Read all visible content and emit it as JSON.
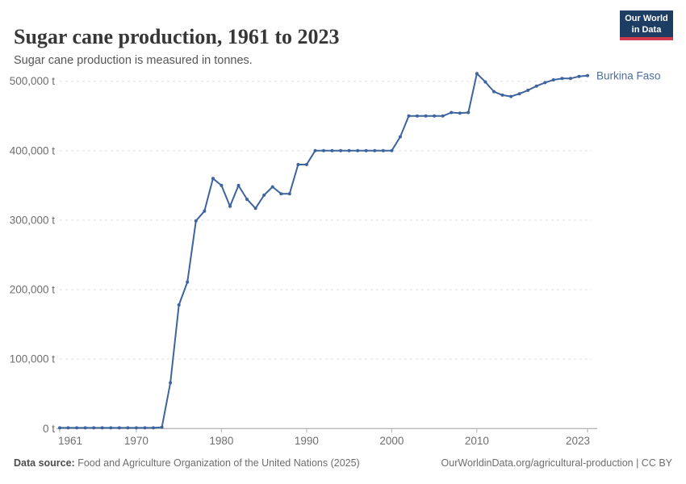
{
  "header": {
    "title": "Sugar cane production, 1961 to 2023",
    "subtitle": "Sugar cane production is measured in tonnes."
  },
  "logo": {
    "line1": "Our World",
    "line2": "in Data",
    "bg_color": "#1d3d63",
    "accent_color": "#d23b4c"
  },
  "chart_data": {
    "type": "line",
    "title": "Sugar cane production, 1961 to 2023",
    "unit": "tonnes",
    "xlabel": "",
    "ylabel": "",
    "xlim": [
      1961,
      2023
    ],
    "ylim": [
      0,
      500000
    ],
    "grid": "horizontal dashed",
    "legend_position": "end-of-line label",
    "x": [
      1961,
      1962,
      1963,
      1964,
      1965,
      1966,
      1967,
      1968,
      1969,
      1970,
      1971,
      1972,
      1973,
      1974,
      1975,
      1976,
      1977,
      1978,
      1979,
      1980,
      1981,
      1982,
      1983,
      1984,
      1985,
      1986,
      1987,
      1988,
      1989,
      1990,
      1991,
      1992,
      1993,
      1994,
      1995,
      1996,
      1997,
      1998,
      1999,
      2000,
      2001,
      2002,
      2003,
      2004,
      2005,
      2006,
      2007,
      2008,
      2009,
      2010,
      2011,
      2012,
      2013,
      2014,
      2015,
      2016,
      2017,
      2018,
      2019,
      2020,
      2021,
      2022,
      2023
    ],
    "series": [
      {
        "name": "Burkina Faso",
        "color": "#3d649d",
        "label_color": "#4d6e9f",
        "values": [
          1000,
          1000,
          1000,
          1000,
          1000,
          1000,
          1000,
          1000,
          1000,
          1000,
          1000,
          1000,
          2000,
          66000,
          178000,
          211000,
          299000,
          313000,
          360000,
          350000,
          320000,
          350000,
          330000,
          317000,
          336000,
          348000,
          338000,
          338000,
          380000,
          380000,
          400000,
          400000,
          400000,
          400000,
          400000,
          400000,
          400000,
          400000,
          400000,
          400000,
          420000,
          450000,
          450000,
          450000,
          450000,
          450000,
          455000,
          454000,
          455000,
          511000,
          499000,
          485000,
          480000,
          478000,
          482000,
          487000,
          493000,
          498000,
          502000,
          504000,
          504000,
          507000,
          508000
        ]
      }
    ],
    "y_ticks": [
      {
        "value": 0,
        "label": "0 t"
      },
      {
        "value": 100000,
        "label": "100,000 t"
      },
      {
        "value": 200000,
        "label": "200,000 t"
      },
      {
        "value": 300000,
        "label": "300,000 t"
      },
      {
        "value": 400000,
        "label": "400,000 t"
      },
      {
        "value": 500000,
        "label": "500,000 t"
      }
    ],
    "x_ticks": [
      {
        "value": 1961,
        "label": "1961"
      },
      {
        "value": 1970,
        "label": "1970"
      },
      {
        "value": 1980,
        "label": "1980"
      },
      {
        "value": 1990,
        "label": "1990"
      },
      {
        "value": 2000,
        "label": "2000"
      },
      {
        "value": 2010,
        "label": "2010"
      },
      {
        "value": 2023,
        "label": "2023"
      }
    ]
  },
  "footer": {
    "source_label": "Data source:",
    "source_text": " Food and Agriculture Organization of the United Nations (2025)",
    "link_text": "OurWorldinData.org/agricultural-production | CC BY"
  }
}
